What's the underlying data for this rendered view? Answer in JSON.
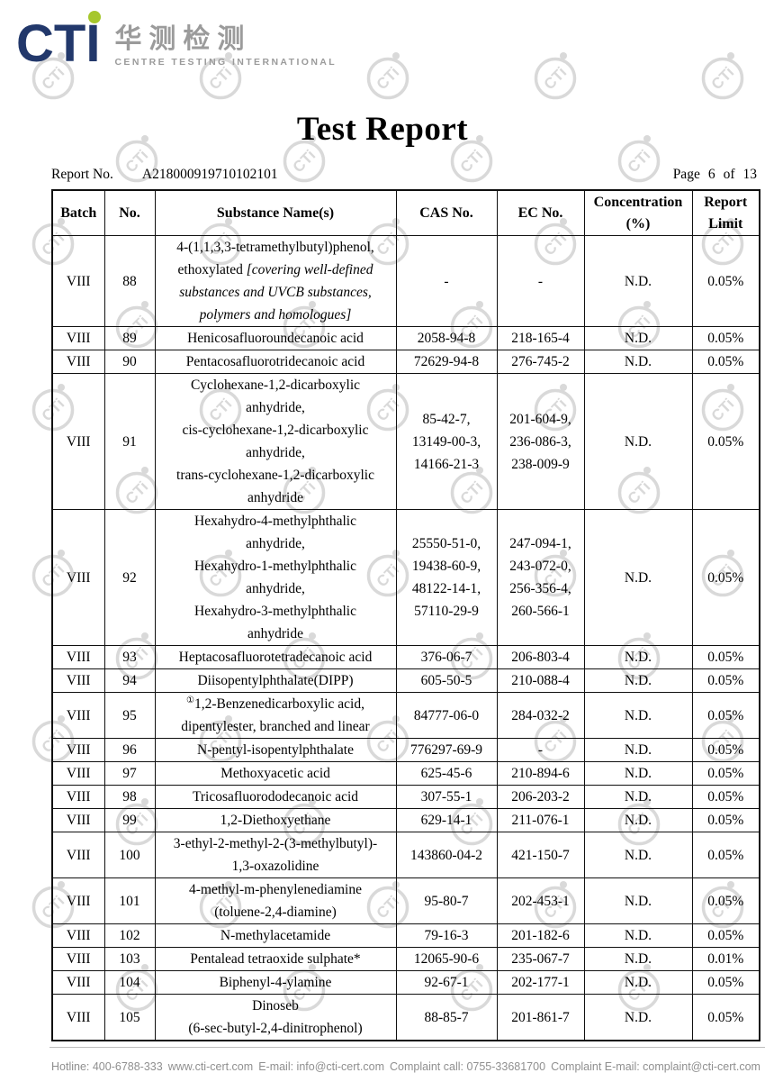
{
  "logo": {
    "brand": "CTI",
    "chinese": "华测检测",
    "subtitle": "CENTRE TESTING INTERNATIONAL"
  },
  "title": "Test Report",
  "report": {
    "label": "Report No.",
    "number": "A218000919710102101",
    "page_label": "Page",
    "page_current": "6",
    "page_of": "of",
    "page_total": "13"
  },
  "table": {
    "headers": [
      [
        "Batch"
      ],
      [
        "No."
      ],
      [
        "Substance Name(s)"
      ],
      [
        "CAS No."
      ],
      [
        "EC No."
      ],
      [
        "Concentration",
        "(%)"
      ],
      [
        "Report",
        "Limit"
      ]
    ],
    "rows": [
      {
        "batch": "VIII",
        "no": "88",
        "name": [
          "4-(1,1,3,3-tetramethylbutyl)phenol,",
          [
            "ethoxylated ",
            {
              "t": "[covering well-defined",
              "i": true
            }
          ],
          [
            {
              "t": "substances and UVCB substances,",
              "i": true
            }
          ],
          [
            {
              "t": "polymers and homologues]",
              "i": true
            }
          ]
        ],
        "cas": [
          "-"
        ],
        "ec": [
          "-"
        ],
        "conc": "N.D.",
        "limit": "0.05%"
      },
      {
        "batch": "VIII",
        "no": "89",
        "name": [
          "Henicosafluoroundecanoic acid"
        ],
        "cas": [
          "2058-94-8"
        ],
        "ec": [
          "218-165-4"
        ],
        "conc": "N.D.",
        "limit": "0.05%"
      },
      {
        "batch": "VIII",
        "no": "90",
        "name": [
          "Pentacosafluorotridecanoic acid"
        ],
        "cas": [
          "72629-94-8"
        ],
        "ec": [
          "276-745-2"
        ],
        "conc": "N.D.",
        "limit": "0.05%"
      },
      {
        "batch": "VIII",
        "no": "91",
        "name": [
          "Cyclohexane-1,2-dicarboxylic",
          "anhydride,",
          "cis-cyclohexane-1,2-dicarboxylic",
          "anhydride,",
          "trans-cyclohexane-1,2-dicarboxylic",
          "anhydride"
        ],
        "cas": [
          "85-42-7,",
          "13149-00-3,",
          "14166-21-3"
        ],
        "ec": [
          "201-604-9,",
          "236-086-3,",
          "238-009-9"
        ],
        "conc": "N.D.",
        "limit": "0.05%"
      },
      {
        "batch": "VIII",
        "no": "92",
        "name": [
          "Hexahydro-4-methylphthalic",
          "anhydride,",
          "Hexahydro-1-methylphthalic",
          "anhydride,",
          "Hexahydro-3-methylphthalic",
          "anhydride"
        ],
        "cas": [
          "25550-51-0,",
          "19438-60-9,",
          "48122-14-1,",
          "57110-29-9"
        ],
        "ec": [
          "247-094-1,",
          "243-072-0,",
          "256-356-4,",
          "260-566-1"
        ],
        "conc": "N.D.",
        "limit": "0.05%"
      },
      {
        "batch": "VIII",
        "no": "93",
        "name": [
          "Heptacosafluorotetradecanoic acid"
        ],
        "cas": [
          "376-06-7"
        ],
        "ec": [
          "206-803-4"
        ],
        "conc": "N.D.",
        "limit": "0.05%"
      },
      {
        "batch": "VIII",
        "no": "94",
        "name": [
          "Diisopentylphthalate(DIPP)"
        ],
        "cas": [
          "605-50-5"
        ],
        "ec": [
          "210-088-4"
        ],
        "conc": "N.D.",
        "limit": "0.05%"
      },
      {
        "batch": "VIII",
        "no": "95",
        "name": [
          [
            {
              "t": "①",
              "sup": true
            },
            "1,2-Benzenedicarboxylic acid,"
          ],
          "dipentylester, branched and linear"
        ],
        "cas": [
          "84777-06-0"
        ],
        "ec": [
          "284-032-2"
        ],
        "conc": "N.D.",
        "limit": "0.05%"
      },
      {
        "batch": "VIII",
        "no": "96",
        "name": [
          "N-pentyl-isopentylphthalate"
        ],
        "cas": [
          "776297-69-9"
        ],
        "ec": [
          "-"
        ],
        "conc": "N.D.",
        "limit": "0.05%"
      },
      {
        "batch": "VIII",
        "no": "97",
        "name": [
          "Methoxyacetic acid"
        ],
        "cas": [
          "625-45-6"
        ],
        "ec": [
          "210-894-6"
        ],
        "conc": "N.D.",
        "limit": "0.05%"
      },
      {
        "batch": "VIII",
        "no": "98",
        "name": [
          "Tricosafluorododecanoic acid"
        ],
        "cas": [
          "307-55-1"
        ],
        "ec": [
          "206-203-2"
        ],
        "conc": "N.D.",
        "limit": "0.05%"
      },
      {
        "batch": "VIII",
        "no": "99",
        "name": [
          "1,2-Diethoxyethane"
        ],
        "cas": [
          "629-14-1"
        ],
        "ec": [
          "211-076-1"
        ],
        "conc": "N.D.",
        "limit": "0.05%"
      },
      {
        "batch": "VIII",
        "no": "100",
        "name": [
          "3-ethyl-2-methyl-2-(3-methylbutyl)-",
          "1,3-oxazolidine"
        ],
        "cas": [
          "143860-04-2"
        ],
        "ec": [
          "421-150-7"
        ],
        "conc": "N.D.",
        "limit": "0.05%"
      },
      {
        "batch": "VIII",
        "no": "101",
        "name": [
          "4-methyl-m-phenylenediamine",
          "(toluene-2,4-diamine)"
        ],
        "cas": [
          "95-80-7"
        ],
        "ec": [
          "202-453-1"
        ],
        "conc": "N.D.",
        "limit": "0.05%"
      },
      {
        "batch": "VIII",
        "no": "102",
        "name": [
          "N-methylacetamide"
        ],
        "cas": [
          "79-16-3"
        ],
        "ec": [
          "201-182-6"
        ],
        "conc": "N.D.",
        "limit": "0.05%"
      },
      {
        "batch": "VIII",
        "no": "103",
        "name": [
          "Pentalead tetraoxide sulphate*"
        ],
        "cas": [
          "12065-90-6"
        ],
        "ec": [
          "235-067-7"
        ],
        "conc": "N.D.",
        "limit": "0.01%"
      },
      {
        "batch": "VIII",
        "no": "104",
        "name": [
          "Biphenyl-4-ylamine"
        ],
        "cas": [
          "92-67-1"
        ],
        "ec": [
          "202-177-1"
        ],
        "conc": "N.D.",
        "limit": "0.05%"
      },
      {
        "batch": "VIII",
        "no": "105",
        "name": [
          "Dinoseb",
          "(6-sec-butyl-2,4-dinitrophenol)"
        ],
        "cas": [
          "88-85-7"
        ],
        "ec": [
          "201-861-7"
        ],
        "conc": "N.D.",
        "limit": "0.05%"
      }
    ]
  },
  "footer": {
    "items": [
      "Hotline: 400-6788-333",
      "www.cti-cert.com",
      "E-mail: info@cti-cert.com",
      "Complaint call: 0755-33681700",
      "Complaint E-mail: complaint@cti-cert.com"
    ]
  },
  "watermark": {
    "text": "CTi"
  },
  "colors": {
    "brand_navy": "#22386b",
    "brand_green": "#a6c72c",
    "watermark": "#d9d9d9",
    "footer_text": "#8f8f8f"
  }
}
